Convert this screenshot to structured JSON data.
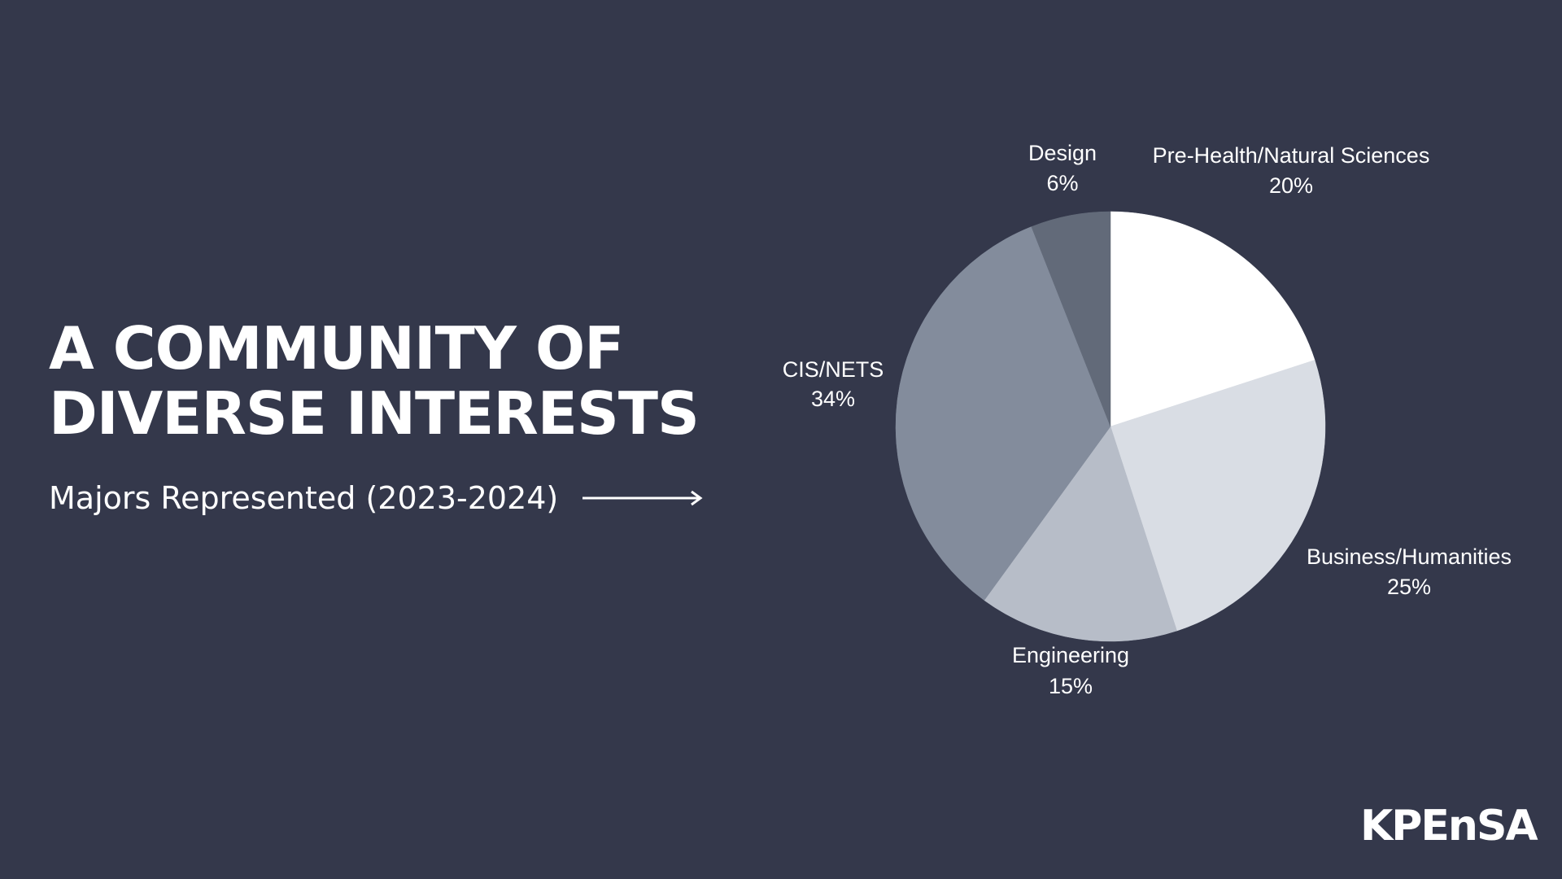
{
  "slide": {
    "title_line1": "A COMMUNITY OF",
    "title_line2": "DIVERSE INTERESTS",
    "subtitle": "Majors Represented (2023-2024)",
    "logo_text": "KPEnSA"
  },
  "colors": {
    "background": "#34384b",
    "text": "#ffffff"
  },
  "chart_data": {
    "type": "pie",
    "title": "",
    "slices": [
      {
        "label": "Pre-Health/Natural Sciences",
        "value": 20,
        "value_label": "20%",
        "color": "#ffffff",
        "label_position": "top-right"
      },
      {
        "label": "Business/Humanities",
        "value": 25,
        "value_label": "25%",
        "color": "#d9dde4",
        "label_position": "right"
      },
      {
        "label": "Engineering",
        "value": 15,
        "value_label": "15%",
        "color": "#b7bdc8",
        "label_position": "bottom"
      },
      {
        "label": "CIS/NETS",
        "value": 34,
        "value_label": "34%",
        "color": "#838c9c",
        "label_position": "left"
      },
      {
        "label": "Design",
        "value": 6,
        "value_label": "6%",
        "color": "#626a79",
        "label_position": "top"
      }
    ],
    "start_angle_deg": 0,
    "direction": "clockwise",
    "legend": "none"
  }
}
